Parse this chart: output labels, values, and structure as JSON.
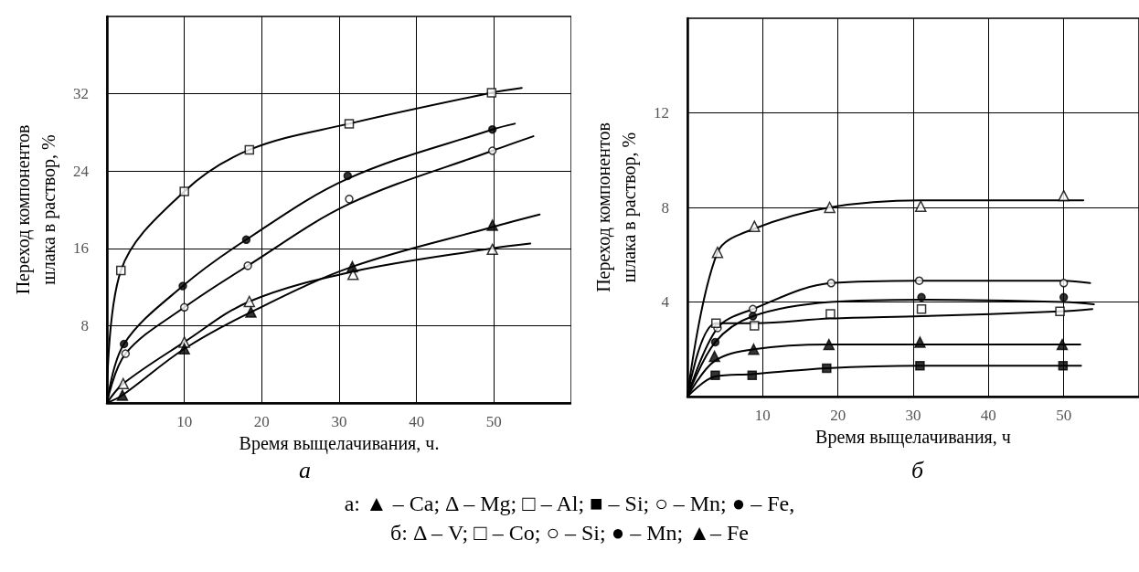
{
  "chart_data": [
    {
      "type": "line",
      "title": "а",
      "xlabel": "Время выщелачивания, ч.",
      "ylabel": "Переход компонентов\nшлака в раствор, %",
      "xlim": [
        0,
        60
      ],
      "xticks": [
        10,
        20,
        30,
        40,
        50
      ],
      "ylim": [
        0,
        40
      ],
      "yticks": [
        8,
        16,
        24,
        32
      ],
      "grid": true,
      "annotations": [
        "а: ▲ – Ca; Δ – Mg; □ – Al; ■ – Si; ○ – Mn; ● – Fe,"
      ],
      "series": [
        {
          "type": "scatter",
          "marker": "square",
          "color": "#ffffff",
          "x": [
            1.8,
            10,
            18.4,
            31.3,
            49.7
          ],
          "values": [
            13.7,
            21.9,
            26.2,
            28.9,
            32.1
          ]
        },
        {
          "type": "line",
          "marker": "none",
          "color": "#000000",
          "x": [
            0,
            1.8,
            10,
            18.4,
            31.3,
            49.7,
            53.6
          ],
          "values": [
            0,
            13.7,
            21.9,
            26.2,
            28.9,
            32.1,
            32.6
          ]
        },
        {
          "type": "scatter",
          "marker": "circle",
          "color": "#000000",
          "x": [
            2.2,
            9.8,
            18,
            31.1,
            49.8
          ],
          "values": [
            6.1,
            12.1,
            16.9,
            23.5,
            28.3
          ]
        },
        {
          "type": "line",
          "marker": "none",
          "color": "#000000",
          "x": [
            0,
            2.2,
            9.8,
            18,
            31.1,
            49.8,
            52.7
          ],
          "values": [
            0,
            6.1,
            12.1,
            16.9,
            23.2,
            28.3,
            28.9
          ]
        },
        {
          "type": "scatter",
          "marker": "circle",
          "color": "#ffffff",
          "x": [
            2.4,
            10,
            18.2,
            31.3,
            49.8
          ],
          "values": [
            5.1,
            9.9,
            14.2,
            21.1,
            26.1
          ]
        },
        {
          "type": "line",
          "marker": "none",
          "color": "#000000",
          "x": [
            0,
            2.4,
            10,
            18.2,
            31.3,
            49.8,
            55.1
          ],
          "values": [
            0,
            5.1,
            9.9,
            14.2,
            20.6,
            26.1,
            27.6
          ]
        },
        {
          "type": "scatter",
          "marker": "triangle",
          "color": "#ffffff",
          "x": [
            2.1,
            10,
            18.4,
            31.8,
            49.8
          ],
          "values": [
            2.0,
            6.3,
            10.5,
            13.3,
            15.9
          ]
        },
        {
          "type": "line",
          "marker": "none",
          "color": "#000000",
          "x": [
            0,
            2.1,
            10,
            18.4,
            31.8,
            49.8,
            54.7
          ],
          "values": [
            0,
            2.0,
            6.3,
            10.5,
            13.6,
            16.0,
            16.5
          ]
        },
        {
          "type": "scatter",
          "marker": "triangle",
          "color": "#000000",
          "x": [
            2.0,
            10,
            18.6,
            31.7,
            49.8
          ],
          "values": [
            0.8,
            5.6,
            9.4,
            14.1,
            18.4
          ]
        },
        {
          "type": "line",
          "marker": "none",
          "color": "#000000",
          "x": [
            0,
            2.0,
            10,
            18.6,
            31.7,
            49.8,
            55.9
          ],
          "values": [
            0,
            0.8,
            5.6,
            9.4,
            14.1,
            18.2,
            19.5
          ]
        }
      ]
    },
    {
      "type": "line",
      "title": "б",
      "xlabel": "Время выщелачивания, ч",
      "ylabel": "Переход компонентов\nшлака в раствор, %",
      "xlim": [
        0,
        60
      ],
      "xticks": [
        10,
        20,
        30,
        40,
        50
      ],
      "ylim": [
        0,
        16
      ],
      "yticks": [
        4,
        8,
        12
      ],
      "grid": true,
      "annotations": [
        "б: Δ – V; □ – Co; ○ – Si; ● – Mn; ▲– Fe"
      ],
      "series": [
        {
          "type": "scatter",
          "marker": "triangle",
          "color": "#ffffff",
          "x": [
            4.0,
            8.9,
            18.9,
            31.0,
            50
          ],
          "values": [
            6.1,
            7.2,
            8.0,
            8.05,
            8.5
          ]
        },
        {
          "type": "line",
          "marker": "none",
          "color": "#000000",
          "x": [
            0,
            4.0,
            8.9,
            18.9,
            31.0,
            50,
            52.6
          ],
          "values": [
            0,
            6.1,
            7.1,
            8.0,
            8.3,
            8.3,
            8.3
          ]
        },
        {
          "type": "scatter",
          "marker": "circle",
          "color": "#ffffff",
          "x": [
            4.0,
            8.7,
            19.1,
            30.8,
            50
          ],
          "values": [
            2.9,
            3.7,
            4.8,
            4.9,
            4.8
          ]
        },
        {
          "type": "line",
          "marker": "none",
          "color": "#000000",
          "x": [
            0,
            4.0,
            8.7,
            19.1,
            30.8,
            50,
            53.5
          ],
          "values": [
            0,
            2.9,
            3.7,
            4.8,
            4.9,
            4.9,
            4.8
          ]
        },
        {
          "type": "scatter",
          "marker": "circle",
          "color": "#000000",
          "x": [
            3.7,
            8.7,
            31.1,
            50
          ],
          "values": [
            2.3,
            3.4,
            4.2,
            4.2
          ]
        },
        {
          "type": "line",
          "marker": "none",
          "color": "#000000",
          "x": [
            0,
            3.7,
            8.7,
            19.0,
            31.1,
            50,
            54
          ],
          "values": [
            0,
            2.3,
            3.4,
            4.0,
            4.1,
            4.0,
            3.9
          ]
        },
        {
          "type": "scatter",
          "marker": "square",
          "color": "#ffffff",
          "x": [
            3.8,
            8.9,
            19.0,
            31.1,
            49.5
          ],
          "values": [
            3.1,
            3.0,
            3.5,
            3.7,
            3.6
          ]
        },
        {
          "type": "line",
          "marker": "none",
          "color": "#000000",
          "x": [
            0,
            3.8,
            8.9,
            19.0,
            31.1,
            49.5,
            53.8
          ],
          "values": [
            0,
            3.1,
            3.1,
            3.3,
            3.4,
            3.6,
            3.7
          ]
        },
        {
          "type": "scatter",
          "marker": "triangle",
          "color": "#000000",
          "x": [
            3.6,
            8.8,
            18.8,
            30.9,
            49.8
          ],
          "values": [
            1.7,
            2.0,
            2.2,
            2.3,
            2.2
          ]
        },
        {
          "type": "line",
          "marker": "none",
          "color": "#000000",
          "x": [
            0,
            3.6,
            8.8,
            18.8,
            30.9,
            49.8,
            52.2
          ],
          "values": [
            0,
            1.5,
            2.0,
            2.2,
            2.2,
            2.2,
            2.2
          ]
        },
        {
          "type": "scatter",
          "marker": "square",
          "color": "#000000",
          "x": [
            3.7,
            8.6,
            18.5,
            30.9,
            49.9
          ],
          "values": [
            0.9,
            0.9,
            1.2,
            1.3,
            1.3
          ]
        },
        {
          "type": "line",
          "marker": "none",
          "color": "#000000",
          "x": [
            0,
            3.7,
            8.6,
            18.5,
            30.9,
            49.9,
            52.3
          ],
          "values": [
            0,
            0.85,
            0.95,
            1.2,
            1.3,
            1.3,
            1.3
          ]
        }
      ]
    }
  ]
}
